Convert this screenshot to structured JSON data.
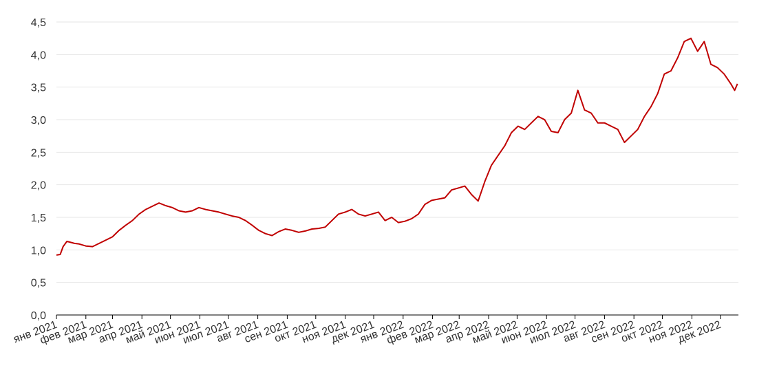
{
  "chart_data": {
    "type": "line",
    "title": "",
    "xlabel": "",
    "ylabel": "",
    "ylim": [
      0,
      4.5
    ],
    "yticks": [
      0,
      0.5,
      1.0,
      1.5,
      2.0,
      2.5,
      3.0,
      3.5,
      4.0,
      4.5
    ],
    "ytick_labels": [
      "0,0",
      "0,5",
      "1,0",
      "1,5",
      "2,0",
      "2,5",
      "3,0",
      "3,5",
      "4,0",
      "4,5"
    ],
    "xlim": [
      "2021-01-01",
      "2022-12-20"
    ],
    "xticks": [
      "2021-01-01",
      "2021-02-01",
      "2021-03-01",
      "2021-04-01",
      "2021-05-01",
      "2021-06-01",
      "2021-07-01",
      "2021-08-01",
      "2021-09-01",
      "2021-10-01",
      "2021-11-01",
      "2021-12-01",
      "2022-01-01",
      "2022-02-01",
      "2022-03-01",
      "2022-04-01",
      "2022-05-01",
      "2022-06-01",
      "2022-07-01",
      "2022-08-01",
      "2022-09-01",
      "2022-10-01",
      "2022-11-01",
      "2022-12-01"
    ],
    "xtick_labels": [
      "янв 2021",
      "фев 2021",
      "мар 2021",
      "апр 2021",
      "май 2021",
      "июн 2021",
      "июл 2021",
      "авг 2021",
      "сен 2021",
      "окт 2021",
      "ноя 2021",
      "дек 2021",
      "янв 2022",
      "фев 2022",
      "мар 2022",
      "апр 2022",
      "май 2022",
      "июн 2022",
      "июл 2022",
      "авг 2022",
      "сен 2022",
      "окт 2022",
      "ноя 2022",
      "дек 2022"
    ],
    "grid": true,
    "series_color": "#c00000",
    "series": [
      {
        "x": [
          "2021-01-01",
          "2021-01-05",
          "2021-01-08",
          "2021-01-12",
          "2021-01-15",
          "2021-01-20",
          "2021-01-25",
          "2021-02-01",
          "2021-02-08",
          "2021-02-15",
          "2021-02-22",
          "2021-03-01",
          "2021-03-08",
          "2021-03-15",
          "2021-03-22",
          "2021-03-29",
          "2021-04-05",
          "2021-04-12",
          "2021-04-19",
          "2021-04-26",
          "2021-05-03",
          "2021-05-10",
          "2021-05-17",
          "2021-05-24",
          "2021-05-31",
          "2021-06-07",
          "2021-06-14",
          "2021-06-21",
          "2021-06-28",
          "2021-07-05",
          "2021-07-12",
          "2021-07-19",
          "2021-07-26",
          "2021-08-02",
          "2021-08-09",
          "2021-08-16",
          "2021-08-23",
          "2021-08-30",
          "2021-09-06",
          "2021-09-13",
          "2021-09-20",
          "2021-09-27",
          "2021-10-04",
          "2021-10-11",
          "2021-10-18",
          "2021-10-25",
          "2021-11-01",
          "2021-11-08",
          "2021-11-15",
          "2021-11-22",
          "2021-11-29",
          "2021-12-06",
          "2021-12-13",
          "2021-12-20",
          "2021-12-27",
          "2022-01-03",
          "2022-01-10",
          "2022-01-17",
          "2022-01-24",
          "2022-01-31",
          "2022-02-07",
          "2022-02-14",
          "2022-02-21",
          "2022-02-28",
          "2022-03-07",
          "2022-03-14",
          "2022-03-21",
          "2022-03-28",
          "2022-04-04",
          "2022-04-11",
          "2022-04-18",
          "2022-04-25",
          "2022-05-02",
          "2022-05-09",
          "2022-05-16",
          "2022-05-23",
          "2022-05-30",
          "2022-06-06",
          "2022-06-13",
          "2022-06-20",
          "2022-06-27",
          "2022-07-04",
          "2022-07-11",
          "2022-07-18",
          "2022-07-25",
          "2022-08-01",
          "2022-08-08",
          "2022-08-15",
          "2022-08-22",
          "2022-08-29",
          "2022-09-05",
          "2022-09-12",
          "2022-09-19",
          "2022-09-26",
          "2022-10-03",
          "2022-10-10",
          "2022-10-17",
          "2022-10-24",
          "2022-10-31",
          "2022-11-07",
          "2022-11-14",
          "2022-11-21",
          "2022-11-28",
          "2022-12-05",
          "2022-12-12",
          "2022-12-16",
          "2022-12-19"
        ],
        "y": [
          0.92,
          0.93,
          1.05,
          1.13,
          1.12,
          1.1,
          1.09,
          1.06,
          1.05,
          1.1,
          1.15,
          1.2,
          1.3,
          1.38,
          1.45,
          1.55,
          1.62,
          1.67,
          1.72,
          1.68,
          1.65,
          1.6,
          1.58,
          1.6,
          1.65,
          1.62,
          1.6,
          1.58,
          1.55,
          1.52,
          1.5,
          1.45,
          1.38,
          1.3,
          1.25,
          1.22,
          1.28,
          1.32,
          1.3,
          1.27,
          1.29,
          1.32,
          1.33,
          1.35,
          1.45,
          1.55,
          1.58,
          1.62,
          1.55,
          1.52,
          1.55,
          1.58,
          1.45,
          1.5,
          1.42,
          1.44,
          1.48,
          1.55,
          1.7,
          1.76,
          1.78,
          1.8,
          1.92,
          1.95,
          1.98,
          1.85,
          1.75,
          2.05,
          2.3,
          2.45,
          2.6,
          2.8,
          2.9,
          2.85,
          2.95,
          3.05,
          3.0,
          2.82,
          2.8,
          3.0,
          3.1,
          3.45,
          3.15,
          3.1,
          2.95,
          2.95,
          2.9,
          2.85,
          2.65,
          2.75,
          2.85,
          3.05,
          3.2,
          3.4,
          3.7,
          3.75,
          3.95,
          4.2,
          4.25,
          4.05,
          4.2,
          3.85,
          3.8,
          3.7,
          3.55,
          3.45,
          3.55
        ]
      }
    ]
  }
}
